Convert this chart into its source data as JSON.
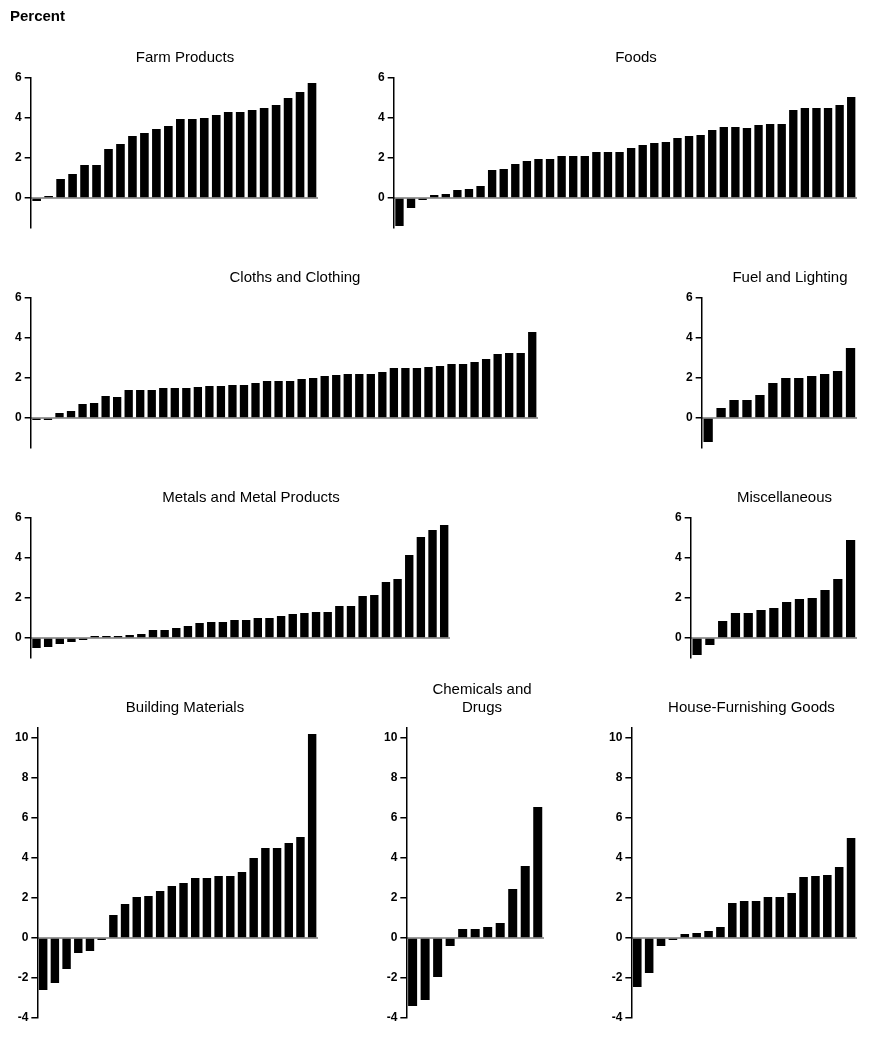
{
  "chart_data": [
    {
      "type": "bar",
      "title": "Farm Products",
      "ylabel": "Percent",
      "color": "#000000",
      "tick_labels": "y",
      "ylim": [
        -1.5,
        6
      ],
      "yticks": [
        0,
        2,
        4,
        6
      ],
      "ref_lines": [
        {
          "axis": "y",
          "value": 0
        }
      ],
      "categories": [
        null,
        null,
        null,
        null,
        null,
        null,
        null,
        null,
        null,
        null,
        null,
        null,
        null,
        null,
        null,
        null,
        null,
        null,
        null,
        null,
        null,
        null,
        null,
        null
      ],
      "values": [
        -0.15,
        0.1,
        0.95,
        1.2,
        1.65,
        1.65,
        2.45,
        2.7,
        3.1,
        3.25,
        3.45,
        3.6,
        3.95,
        3.95,
        4.0,
        4.15,
        4.3,
        4.3,
        4.4,
        4.5,
        4.65,
        5.0,
        5.3,
        5.75
      ]
    },
    {
      "type": "bar",
      "title": "Foods",
      "color": "#000000",
      "tick_labels": "y",
      "ylim": [
        -1.5,
        6
      ],
      "yticks": [
        0,
        2,
        4,
        6
      ],
      "ref_lines": [
        {
          "axis": "y",
          "value": 0
        }
      ],
      "categories": [
        null,
        null,
        null,
        null,
        null,
        null,
        null,
        null,
        null,
        null,
        null,
        null,
        null,
        null,
        null,
        null,
        null,
        null,
        null,
        null,
        null,
        null,
        null,
        null,
        null,
        null,
        null,
        null,
        null,
        null,
        null,
        null,
        null,
        null,
        null,
        null,
        null,
        null,
        null,
        null
      ],
      "values": [
        -1.4,
        -0.5,
        -0.1,
        0.15,
        0.2,
        0.4,
        0.45,
        0.6,
        1.4,
        1.45,
        1.7,
        1.85,
        1.95,
        1.95,
        2.1,
        2.1,
        2.1,
        2.3,
        2.3,
        2.3,
        2.5,
        2.65,
        2.75,
        2.8,
        3.0,
        3.1,
        3.15,
        3.4,
        3.55,
        3.55,
        3.5,
        3.65,
        3.7,
        3.7,
        4.4,
        4.5,
        4.5,
        4.5,
        4.65,
        5.05
      ]
    },
    {
      "type": "bar",
      "title": "Cloths and Clothing",
      "color": "#000000",
      "tick_labels": "y",
      "ylim": [
        -1.5,
        6
      ],
      "yticks": [
        0,
        2,
        4,
        6
      ],
      "ref_lines": [
        {
          "axis": "y",
          "value": 0
        }
      ],
      "categories": [
        null,
        null,
        null,
        null,
        null,
        null,
        null,
        null,
        null,
        null,
        null,
        null,
        null,
        null,
        null,
        null,
        null,
        null,
        null,
        null,
        null,
        null,
        null,
        null,
        null,
        null,
        null,
        null,
        null,
        null,
        null,
        null,
        null,
        null,
        null,
        null,
        null,
        null,
        null,
        null,
        null,
        null,
        null,
        null
      ],
      "values": [
        -0.1,
        -0.1,
        0.25,
        0.35,
        0.7,
        0.75,
        1.1,
        1.05,
        1.4,
        1.4,
        1.4,
        1.5,
        1.5,
        1.5,
        1.55,
        1.6,
        1.6,
        1.65,
        1.65,
        1.75,
        1.85,
        1.85,
        1.85,
        1.95,
        2.0,
        2.1,
        2.15,
        2.2,
        2.2,
        2.2,
        2.3,
        2.5,
        2.5,
        2.5,
        2.55,
        2.6,
        2.7,
        2.7,
        2.8,
        2.95,
        3.2,
        3.25,
        3.25,
        4.3
      ]
    },
    {
      "type": "bar",
      "title": "Fuel and Lighting",
      "color": "#000000",
      "tick_labels": "y",
      "ylim": [
        -1.5,
        6
      ],
      "yticks": [
        0,
        2,
        4,
        6
      ],
      "ref_lines": [
        {
          "axis": "y",
          "value": 0
        }
      ],
      "categories": [
        null,
        null,
        null,
        null,
        null,
        null,
        null,
        null,
        null,
        null,
        null,
        null
      ],
      "values": [
        -1.2,
        0.5,
        0.9,
        0.9,
        1.15,
        1.75,
        2.0,
        2.0,
        2.1,
        2.2,
        2.35,
        3.5
      ]
    },
    {
      "type": "bar",
      "title": "Metals and Metal Products",
      "color": "#000000",
      "tick_labels": "y",
      "ylim": [
        -1,
        6
      ],
      "yticks": [
        0,
        2,
        4,
        6
      ],
      "ref_lines": [
        {
          "axis": "y",
          "value": 0
        }
      ],
      "categories": [
        null,
        null,
        null,
        null,
        null,
        null,
        null,
        null,
        null,
        null,
        null,
        null,
        null,
        null,
        null,
        null,
        null,
        null,
        null,
        null,
        null,
        null,
        null,
        null,
        null,
        null,
        null,
        null,
        null,
        null,
        null,
        null,
        null,
        null,
        null,
        null
      ],
      "values": [
        -0.5,
        -0.45,
        -0.3,
        -0.2,
        -0.1,
        0.1,
        0.1,
        0.1,
        0.15,
        0.2,
        0.4,
        0.4,
        0.5,
        0.6,
        0.75,
        0.8,
        0.8,
        0.9,
        0.9,
        1.0,
        1.0,
        1.1,
        1.2,
        1.25,
        1.3,
        1.3,
        1.6,
        1.6,
        2.1,
        2.15,
        2.8,
        2.95,
        4.15,
        5.05,
        5.4,
        5.65
      ]
    },
    {
      "type": "bar",
      "title": "Miscellaneous",
      "color": "#000000",
      "tick_labels": "y",
      "ylim": [
        -1,
        6
      ],
      "yticks": [
        0,
        2,
        4,
        6
      ],
      "ref_lines": [
        {
          "axis": "y",
          "value": 0
        }
      ],
      "categories": [
        null,
        null,
        null,
        null,
        null,
        null,
        null,
        null,
        null,
        null,
        null,
        null,
        null
      ],
      "values": [
        -0.85,
        -0.35,
        0.85,
        1.25,
        1.25,
        1.4,
        1.5,
        1.8,
        1.95,
        2.0,
        2.4,
        2.95,
        4.9
      ]
    },
    {
      "type": "bar",
      "title": "Building Materials",
      "color": "#000000",
      "tick_labels": "y",
      "ylim": [
        -4,
        10.5
      ],
      "yticks": [
        -4,
        -2,
        0,
        2,
        4,
        6,
        8,
        10
      ],
      "ref_lines": [
        {
          "axis": "y",
          "value": 0
        }
      ],
      "categories": [
        null,
        null,
        null,
        null,
        null,
        null,
        null,
        null,
        null,
        null,
        null,
        null,
        null,
        null,
        null,
        null,
        null,
        null,
        null,
        null,
        null,
        null,
        null,
        null
      ],
      "values": [
        -2.6,
        -2.25,
        -1.55,
        -0.75,
        -0.65,
        -0.1,
        1.15,
        1.7,
        2.05,
        2.1,
        2.35,
        2.6,
        2.75,
        3.0,
        3.0,
        3.1,
        3.1,
        3.3,
        4.0,
        4.5,
        4.5,
        4.75,
        5.05,
        10.2
      ]
    },
    {
      "type": "bar",
      "title": "Chemicals and Drugs",
      "color": "#000000",
      "tick_labels": "y",
      "ylim": [
        -4,
        10.5
      ],
      "yticks": [
        -4,
        -2,
        0,
        2,
        4,
        6,
        8,
        10
      ],
      "ref_lines": [
        {
          "axis": "y",
          "value": 0
        }
      ],
      "categories": [
        null,
        null,
        null,
        null,
        null,
        null,
        null,
        null,
        null,
        null,
        null
      ],
      "values": [
        -3.4,
        -3.1,
        -1.95,
        -0.4,
        0.45,
        0.45,
        0.55,
        0.75,
        2.45,
        3.6,
        6.55
      ]
    },
    {
      "type": "bar",
      "title": "House-Furnishing Goods",
      "color": "#000000",
      "tick_labels": "y",
      "ylim": [
        -4,
        10.5
      ],
      "yticks": [
        -4,
        -2,
        0,
        2,
        4,
        6,
        8,
        10
      ],
      "ref_lines": [
        {
          "axis": "y",
          "value": 0
        }
      ],
      "categories": [
        null,
        null,
        null,
        null,
        null,
        null,
        null,
        null,
        null,
        null,
        null,
        null,
        null,
        null,
        null,
        null,
        null,
        null,
        null
      ],
      "values": [
        -2.45,
        -1.75,
        -0.4,
        -0.1,
        0.2,
        0.25,
        0.35,
        0.55,
        1.75,
        1.85,
        1.85,
        2.05,
        2.05,
        2.25,
        3.05,
        3.1,
        3.15,
        3.55,
        5.0
      ]
    }
  ]
}
